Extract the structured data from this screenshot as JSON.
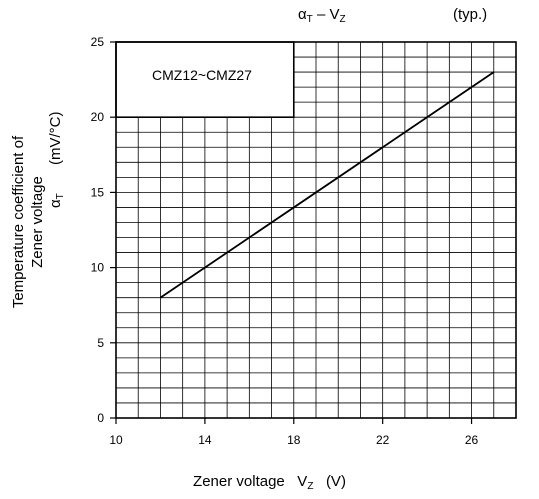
{
  "chart_data": {
    "type": "line",
    "title_symbol": "αT – VZ",
    "title_typ": "(typ.)",
    "legend_label": "CMZ12~CMZ27",
    "xlabel": "Zener voltage",
    "xlabel_symbol": "VZ",
    "xlabel_unit": "(V)",
    "ylabel_line1": "Temperature coefficient of",
    "ylabel_line2": "Zener voltage",
    "ylabel_symbol": "αT",
    "ylabel_unit": "(mV/°C)",
    "xlim": [
      10,
      28
    ],
    "ylim": [
      0,
      25
    ],
    "x_ticks": [
      10,
      14,
      18,
      22,
      26
    ],
    "y_ticks": [
      0,
      5,
      10,
      15,
      20,
      25
    ],
    "grid": true,
    "series": [
      {
        "x": [
          12,
          27
        ],
        "y": [
          8,
          23
        ]
      }
    ]
  }
}
